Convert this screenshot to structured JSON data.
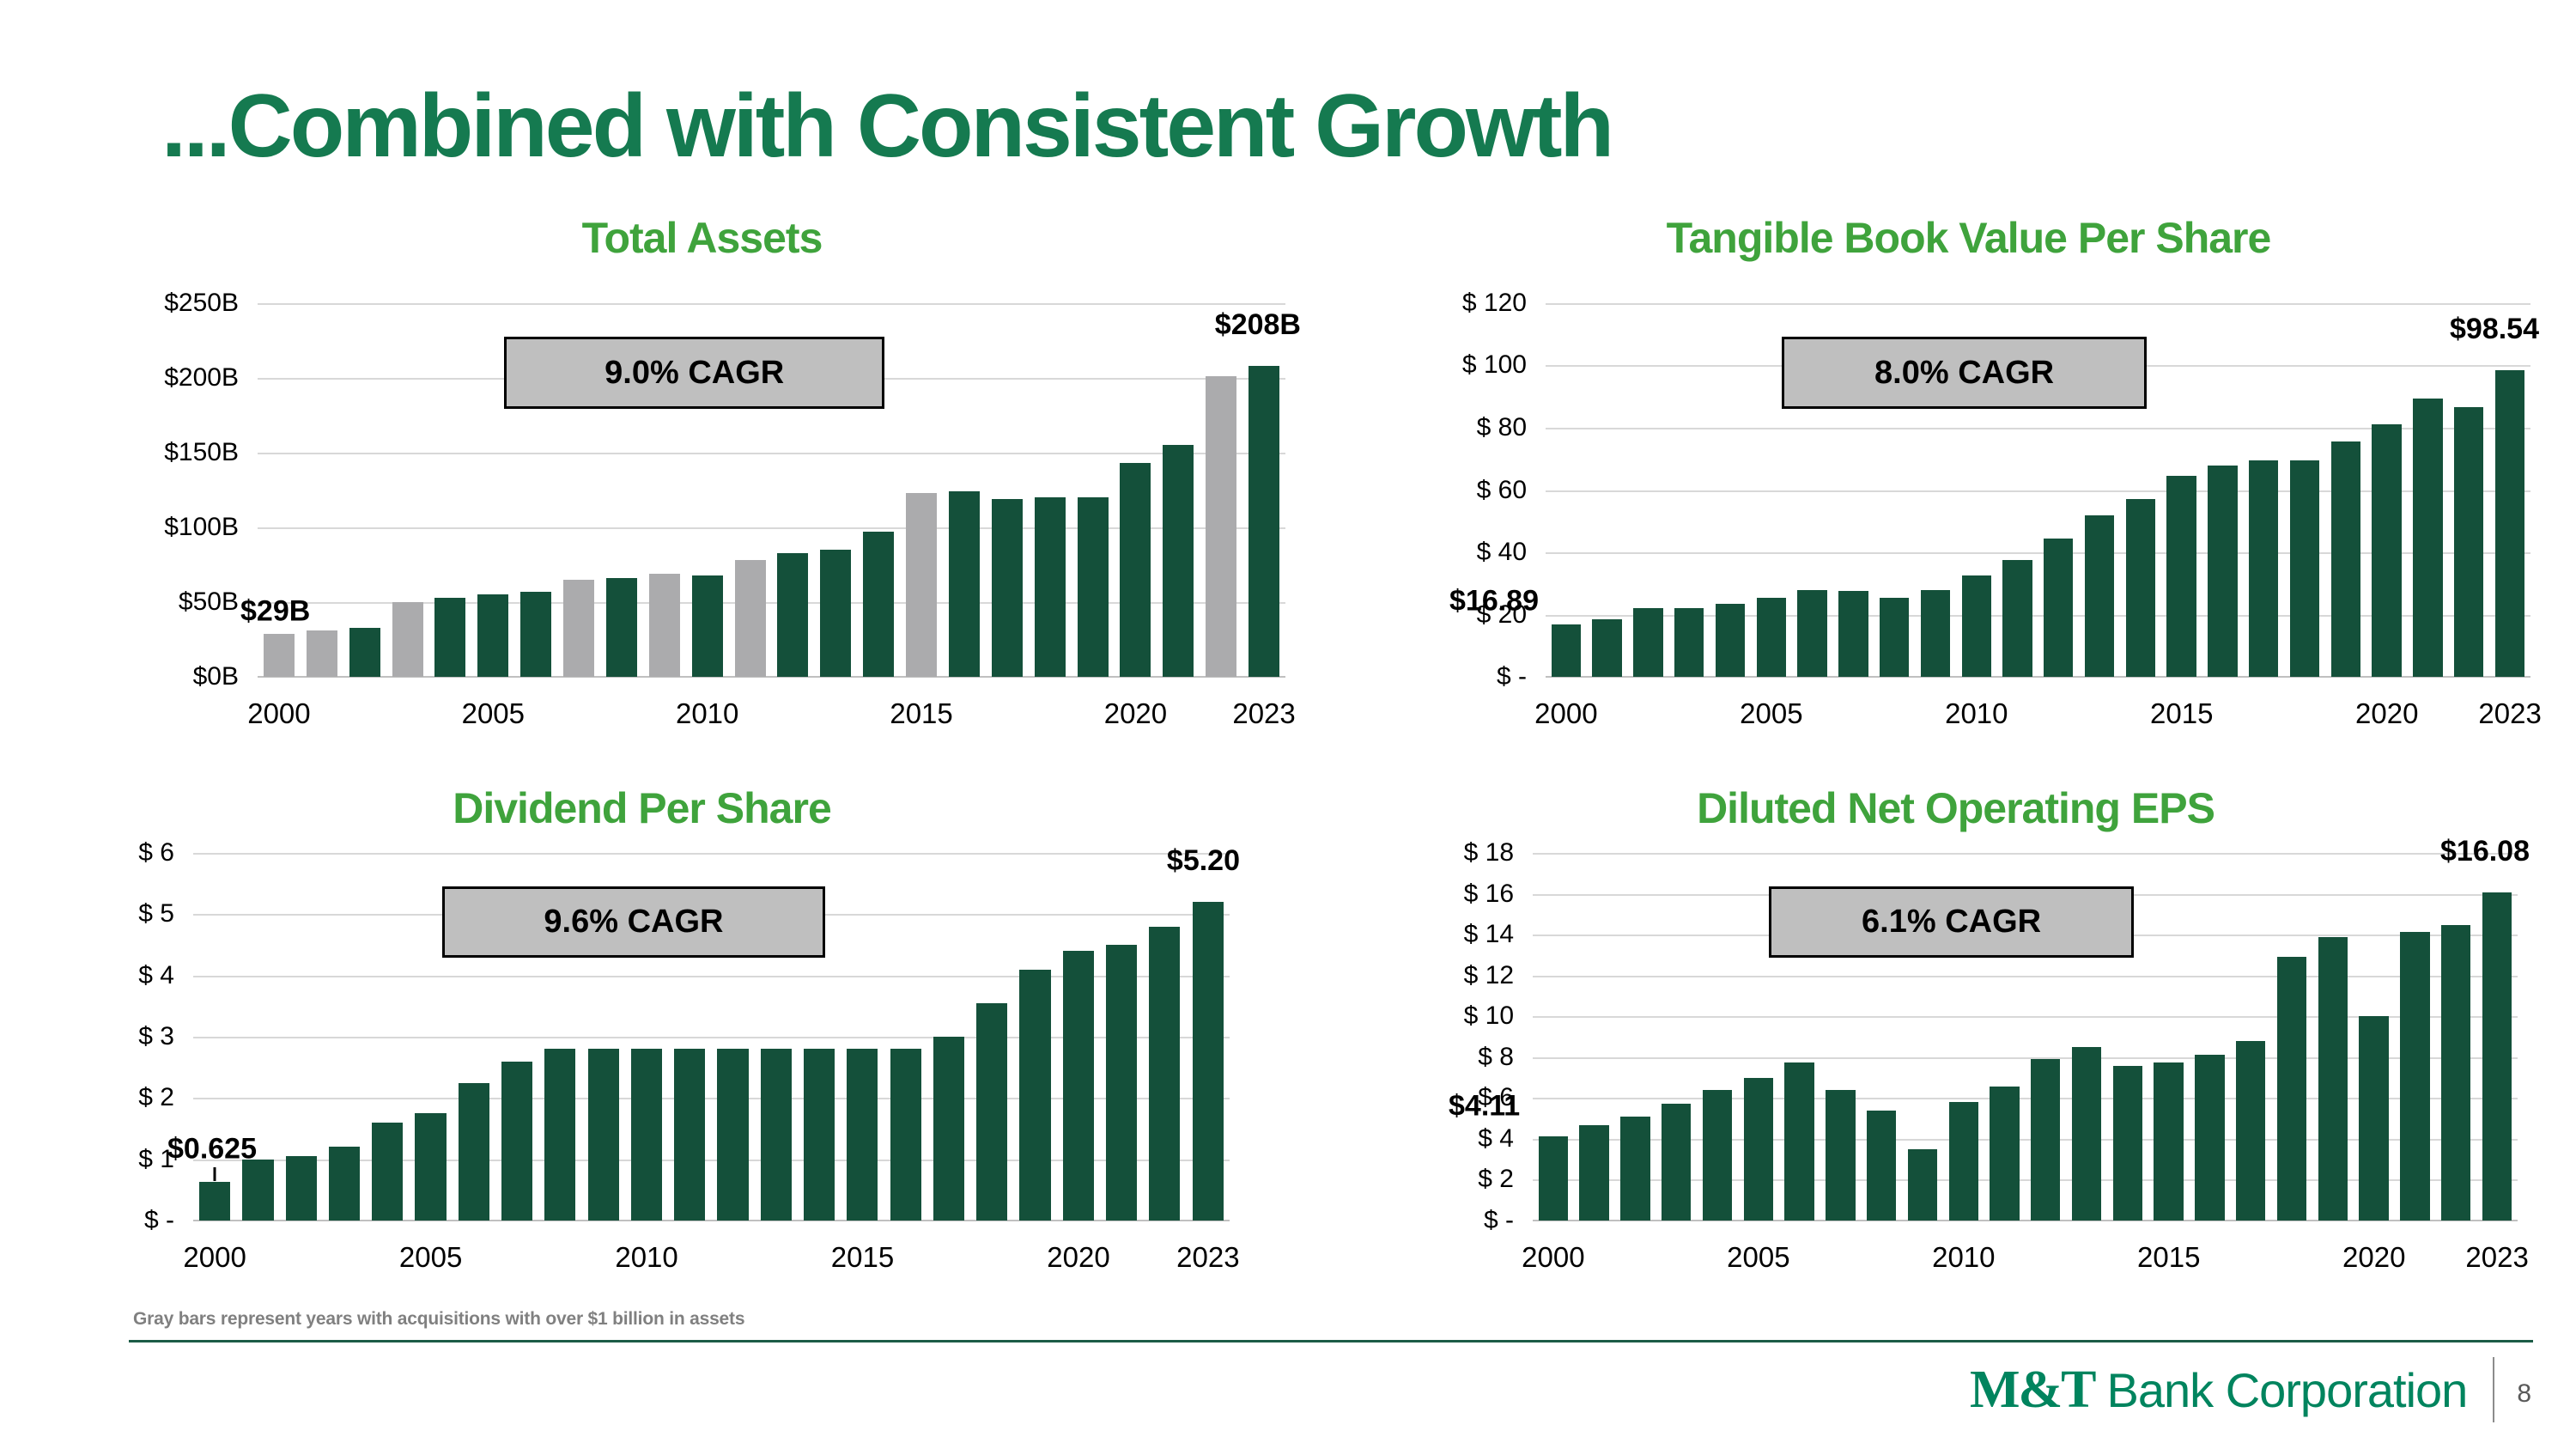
{
  "slide": {
    "title": "...Combined with Consistent Growth",
    "footnote": "Gray bars represent years with acquisitions with over $1 billion in assets",
    "page_number": "8",
    "logo_bold": "M&T",
    "logo_text": "Bank Corporation"
  },
  "colors": {
    "title_green": "#157A50",
    "chart_title_green": "#3FA33C",
    "bar_green": "#14503A",
    "bar_gray": "#ABABAD",
    "cagr_fill": "#BFBFBF",
    "gridline": "#D8D8D8",
    "baseline": "#C0C0C0",
    "separator_green": "#1C5C46",
    "logo_green": "#00845E",
    "footnote_gray": "#808080"
  },
  "chart_data": [
    {
      "type": "bar",
      "title": "Total Assets",
      "cagr_label": "9.0% CAGR",
      "categories": [
        "2000",
        "2001",
        "2002",
        "2003",
        "2004",
        "2005",
        "2006",
        "2007",
        "2008",
        "2009",
        "2010",
        "2011",
        "2012",
        "2013",
        "2014",
        "2015",
        "2016",
        "2017",
        "2018",
        "2019",
        "2020",
        "2021",
        "2022",
        "2023"
      ],
      "values": [
        29,
        31,
        33,
        50,
        53,
        55,
        57,
        65,
        66,
        69,
        68,
        78,
        83,
        85,
        97,
        123,
        124,
        119,
        120,
        120,
        143,
        155,
        201,
        208
      ],
      "gray_indices": [
        0,
        1,
        3,
        7,
        9,
        11,
        15,
        22
      ],
      "ymax": 250,
      "ylim": [
        0,
        250
      ],
      "grid": true,
      "yticks": [
        {
          "value": 250,
          "label": "$250B"
        },
        {
          "value": 200,
          "label": "$200B"
        },
        {
          "value": 150,
          "label": "$150B"
        },
        {
          "value": 100,
          "label": "$100B"
        },
        {
          "value": 50,
          "label": "$50B"
        },
        {
          "value": 0,
          "label": "$0B"
        }
      ],
      "xticks": [
        {
          "index": 0,
          "label": "2000"
        },
        {
          "index": 5,
          "label": "2005"
        },
        {
          "index": 10,
          "label": "2010"
        },
        {
          "index": 15,
          "label": "2015"
        },
        {
          "index": 20,
          "label": "2020"
        },
        {
          "index": 23,
          "label": "2023"
        }
      ],
      "first_value_label": "$29B",
      "last_value_label": "$208B"
    },
    {
      "type": "bar",
      "title": "Tangible Book Value Per Share",
      "cagr_label": "8.0% CAGR",
      "categories": [
        "2000",
        "2001",
        "2002",
        "2003",
        "2004",
        "2005",
        "2006",
        "2007",
        "2008",
        "2009",
        "2010",
        "2011",
        "2012",
        "2013",
        "2014",
        "2015",
        "2016",
        "2017",
        "2018",
        "2019",
        "2020",
        "2021",
        "2022",
        "2023"
      ],
      "values": [
        16.89,
        18.5,
        22,
        22,
        23.5,
        25.5,
        28,
        27.5,
        25.5,
        27.8,
        32.5,
        37.5,
        44.5,
        52,
        57,
        64.5,
        68,
        69.5,
        69.5,
        75.5,
        81,
        89.5,
        86.5,
        98.54
      ],
      "gray_indices": [],
      "ymax": 120,
      "ylim": [
        0,
        120
      ],
      "grid": true,
      "yticks": [
        {
          "value": 120,
          "label": "$ 120"
        },
        {
          "value": 100,
          "label": "$ 100"
        },
        {
          "value": 80,
          "label": "$ 80"
        },
        {
          "value": 60,
          "label": "$ 60"
        },
        {
          "value": 40,
          "label": "$ 40"
        },
        {
          "value": 20,
          "label": "$ 20"
        },
        {
          "value": 0,
          "label": "$ -"
        }
      ],
      "xticks": [
        {
          "index": 0,
          "label": "2000"
        },
        {
          "index": 5,
          "label": "2005"
        },
        {
          "index": 10,
          "label": "2010"
        },
        {
          "index": 15,
          "label": "2015"
        },
        {
          "index": 20,
          "label": "2020"
        },
        {
          "index": 23,
          "label": "2023"
        }
      ],
      "first_value_label": "$16.89",
      "last_value_label": "$98.54"
    },
    {
      "type": "bar",
      "title": "Dividend Per Share",
      "cagr_label": "9.6% CAGR",
      "categories": [
        "2000",
        "2001",
        "2002",
        "2003",
        "2004",
        "2005",
        "2006",
        "2007",
        "2008",
        "2009",
        "2010",
        "2011",
        "2012",
        "2013",
        "2014",
        "2015",
        "2016",
        "2017",
        "2018",
        "2019",
        "2020",
        "2021",
        "2022",
        "2023"
      ],
      "values": [
        0.625,
        1.0,
        1.05,
        1.2,
        1.6,
        1.75,
        2.25,
        2.6,
        2.8,
        2.8,
        2.8,
        2.8,
        2.8,
        2.8,
        2.8,
        2.8,
        2.8,
        3.0,
        3.55,
        4.1,
        4.4,
        4.5,
        4.8,
        5.2
      ],
      "gray_indices": [],
      "ymax": 6,
      "ylim": [
        0,
        6
      ],
      "grid": true,
      "yticks": [
        {
          "value": 6,
          "label": "$ 6"
        },
        {
          "value": 5,
          "label": "$ 5"
        },
        {
          "value": 4,
          "label": "$ 4"
        },
        {
          "value": 3,
          "label": "$ 3"
        },
        {
          "value": 2,
          "label": "$ 2"
        },
        {
          "value": 1,
          "label": "$ 1"
        },
        {
          "value": 0,
          "label": "$ -"
        }
      ],
      "xticks": [
        {
          "index": 0,
          "label": "2000"
        },
        {
          "index": 5,
          "label": "2005"
        },
        {
          "index": 10,
          "label": "2010"
        },
        {
          "index": 15,
          "label": "2015"
        },
        {
          "index": 20,
          "label": "2020"
        },
        {
          "index": 23,
          "label": "2023"
        }
      ],
      "first_value_label": "$0.625",
      "last_value_label": "$5.20"
    },
    {
      "type": "bar",
      "title": "Diluted Net Operating EPS",
      "cagr_label": "6.1% CAGR",
      "categories": [
        "2000",
        "2001",
        "2002",
        "2003",
        "2004",
        "2005",
        "2006",
        "2007",
        "2008",
        "2009",
        "2010",
        "2011",
        "2012",
        "2013",
        "2014",
        "2015",
        "2016",
        "2017",
        "2018",
        "2019",
        "2020",
        "2021",
        "2022",
        "2023"
      ],
      "values": [
        4.11,
        4.65,
        5.1,
        5.7,
        6.4,
        7.0,
        7.75,
        6.4,
        5.4,
        3.5,
        5.8,
        6.55,
        7.9,
        8.5,
        7.55,
        7.75,
        8.1,
        8.8,
        12.9,
        13.9,
        10.0,
        14.15,
        14.45,
        16.08
      ],
      "gray_indices": [],
      "ymax": 18,
      "ylim": [
        0,
        18
      ],
      "grid": true,
      "yticks": [
        {
          "value": 18,
          "label": "$ 18"
        },
        {
          "value": 16,
          "label": "$ 16"
        },
        {
          "value": 14,
          "label": "$ 14"
        },
        {
          "value": 12,
          "label": "$ 12"
        },
        {
          "value": 10,
          "label": "$ 10"
        },
        {
          "value": 8,
          "label": "$ 8"
        },
        {
          "value": 6,
          "label": "$ 6"
        },
        {
          "value": 4,
          "label": "$ 4"
        },
        {
          "value": 2,
          "label": "$ 2"
        },
        {
          "value": 0,
          "label": "$ -"
        }
      ],
      "xticks": [
        {
          "index": 0,
          "label": "2000"
        },
        {
          "index": 5,
          "label": "2005"
        },
        {
          "index": 10,
          "label": "2010"
        },
        {
          "index": 15,
          "label": "2015"
        },
        {
          "index": 20,
          "label": "2020"
        },
        {
          "index": 23,
          "label": "2023"
        }
      ],
      "first_value_label": "$4.11",
      "last_value_label": "$16.08"
    }
  ]
}
